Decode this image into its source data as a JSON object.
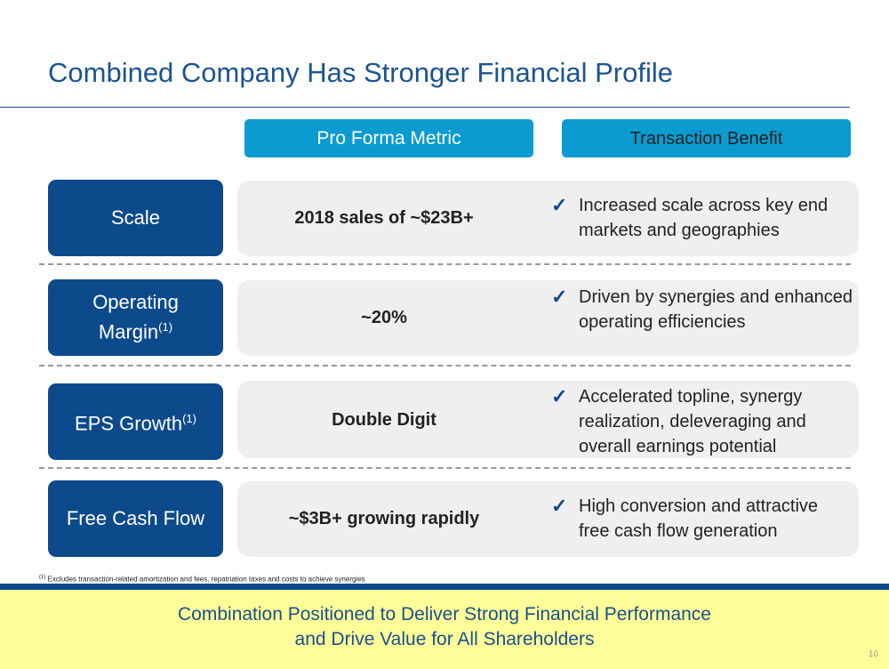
{
  "title": "Combined Company Has Stronger Financial Profile",
  "headers": {
    "metric": "Pro Forma Metric",
    "benefit": "Transaction Benefit"
  },
  "rows": [
    {
      "label": "Scale",
      "label_sup": "",
      "metric": "2018 sales of ~$23B+",
      "benefit": "Increased scale across key end markets and geographies"
    },
    {
      "label": "Operating Margin",
      "label_line1": "Operating",
      "label_line2": "Margin",
      "label_sup": "(1)",
      "metric": "~20%",
      "benefit": "Driven by synergies and enhanced operating efficiencies"
    },
    {
      "label": "EPS Growth",
      "label_sup": "(1)",
      "metric": "Double Digit",
      "benefit": "Accelerated topline, synergy realization, deleveraging and overall earnings potential"
    },
    {
      "label": "Free Cash Flow",
      "label_sup": "",
      "metric": "~$3B+ growing rapidly",
      "benefit": "High conversion and attractive free cash flow generation"
    }
  ],
  "check_glyph": "✓",
  "footnote": {
    "marker": "(1)",
    "text": "Excludes transaction-related amortization and fees, repatriation taxes and costs to achieve synergies"
  },
  "banner": {
    "line1": "Combination Positioned to Deliver Strong Financial Performance",
    "line2": "and Drive Value for All Shareholders"
  },
  "page_number": "10",
  "colors": {
    "title": "#1a5494",
    "header_bg": "#0b9bd1",
    "label_bg": "#0d4a8c",
    "panel_bg": "#efefef",
    "banner_bg": "#ffff99"
  }
}
